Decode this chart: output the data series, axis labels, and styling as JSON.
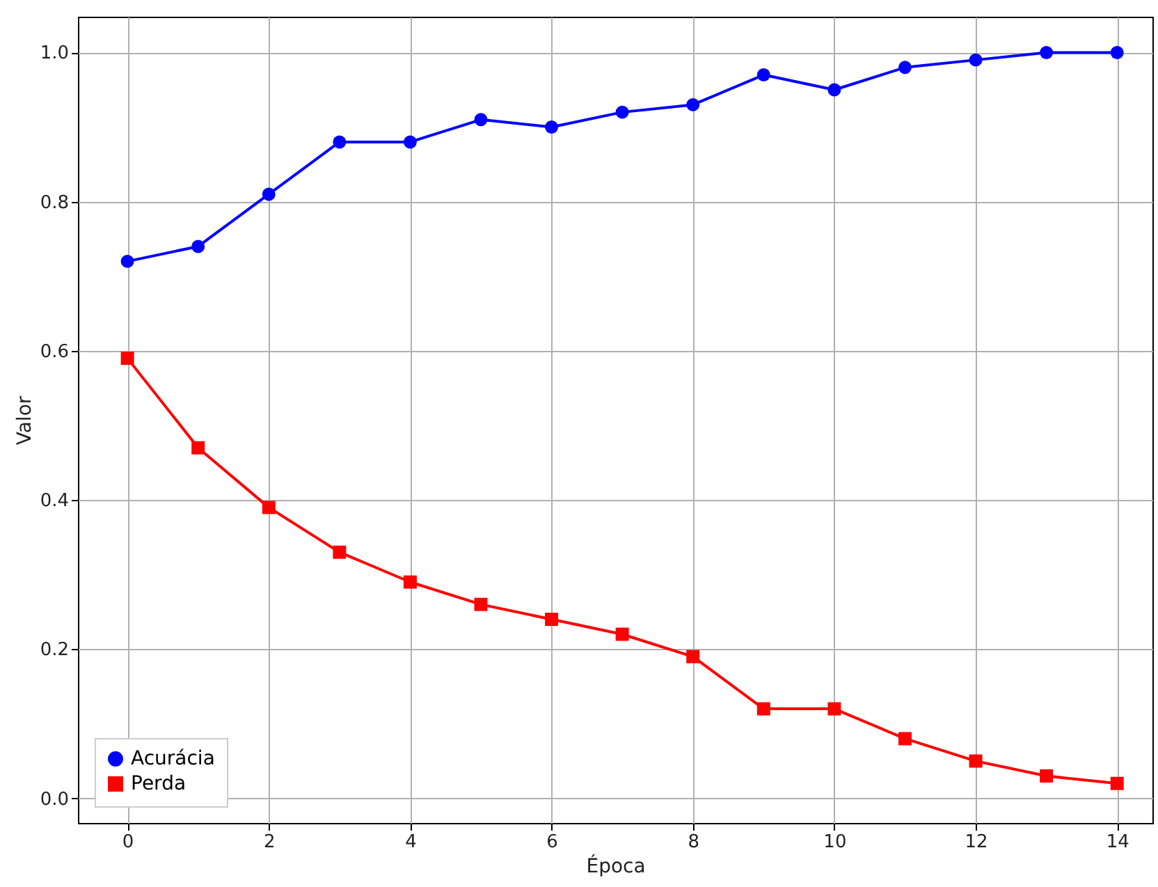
{
  "chart_data": {
    "type": "line",
    "xlabel": "Época",
    "ylabel": "Valor",
    "x": [
      0,
      1,
      2,
      3,
      4,
      5,
      6,
      7,
      8,
      9,
      10,
      11,
      12,
      13,
      14
    ],
    "series": [
      {
        "name": "Acurácia",
        "color": "#0000ff",
        "marker": "circle",
        "values": [
          0.72,
          0.74,
          0.81,
          0.88,
          0.88,
          0.91,
          0.9,
          0.92,
          0.93,
          0.97,
          0.95,
          0.98,
          0.99,
          1.0,
          1.0
        ]
      },
      {
        "name": "Perda",
        "color": "#ff0000",
        "marker": "square",
        "values": [
          0.59,
          0.47,
          0.39,
          0.33,
          0.29,
          0.26,
          0.24,
          0.22,
          0.19,
          0.12,
          0.12,
          0.08,
          0.05,
          0.03,
          0.02
        ]
      }
    ],
    "xlim": [
      -0.7,
      14.5
    ],
    "ylim": [
      -0.033,
      1.048
    ],
    "xticks": [
      0,
      2,
      4,
      6,
      8,
      10,
      12,
      14
    ],
    "yticks": [
      {
        "value": 0,
        "label": "0.0"
      },
      {
        "value": 0.2,
        "label": "0.2"
      },
      {
        "value": 0.4,
        "label": "0.4"
      },
      {
        "value": 0.6,
        "label": "0.6"
      },
      {
        "value": 0.8,
        "label": "0.8"
      },
      {
        "value": 1,
        "label": "1.0"
      }
    ],
    "grid": true,
    "legend": "bottom left",
    "line_style": "solid"
  }
}
